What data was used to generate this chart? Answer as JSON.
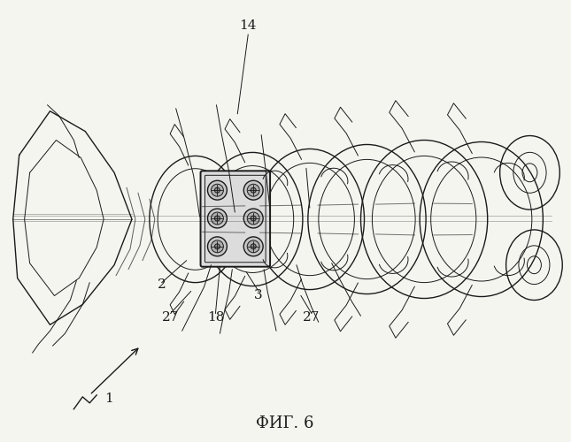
{
  "title": "ФИГ. 6",
  "title_fontsize": 13,
  "bg_color": "#f5f5f0",
  "line_color": "#1a1a1a",
  "label_fontsize": 11
}
